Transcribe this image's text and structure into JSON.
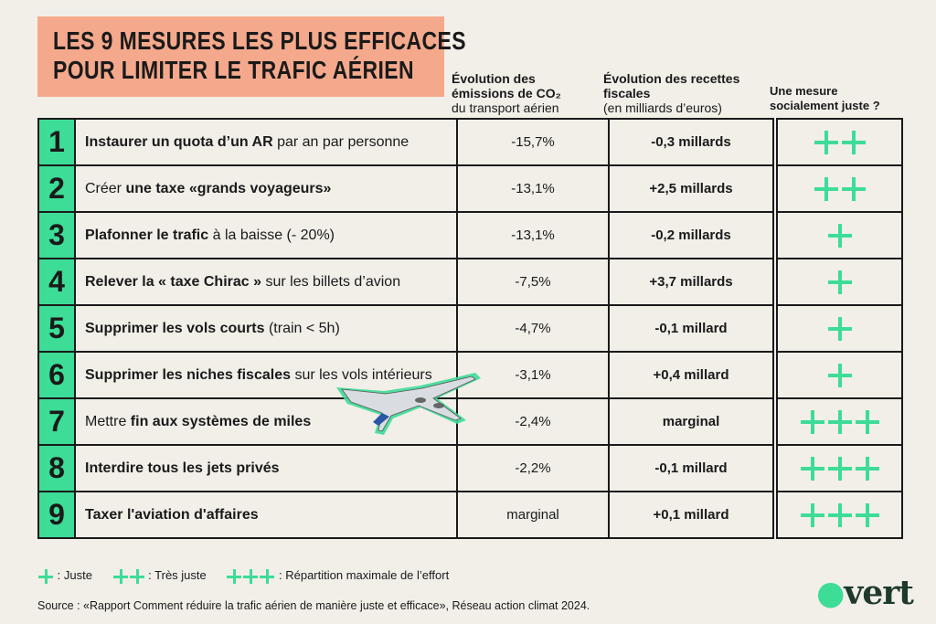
{
  "title": {
    "line1": "LES 9 MESURES LES PLUS EFFICACES",
    "line2": "POUR LIMITER LE TRAFIC AÉRIEN"
  },
  "headers": {
    "co2_bold": "Évolution des émissions de CO₂",
    "co2_sub": "du transport aérien",
    "rev_bold": "Évolution des recettes fiscales",
    "rev_sub": "(en milliards d’euros)",
    "fair": "Une mesure socialement juste ?"
  },
  "rows": [
    {
      "num": "1",
      "bold1": "Instaurer un quota d’un AR",
      "text": " par an par personne",
      "co2": "-15,7%",
      "rev": "-0,3 millards",
      "plus": 2
    },
    {
      "num": "2",
      "pre": "Créer ",
      "bold1": "une taxe «grands voyageurs»",
      "text": "",
      "co2": "-13,1%",
      "rev": "+2,5 millards",
      "plus": 2
    },
    {
      "num": "3",
      "bold1": "Plafonner le trafic",
      "text": " à la baisse (- 20%)",
      "co2": "-13,1%",
      "rev": "-0,2 millards",
      "plus": 1
    },
    {
      "num": "4",
      "bold1": "Relever la « taxe Chirac »",
      "text": " sur les billets d’avion",
      "co2": "-7,5%",
      "rev": "+3,7 millards",
      "plus": 1
    },
    {
      "num": "5",
      "bold1": "Supprimer les vols courts",
      "text": " (train < 5h)",
      "co2": "-4,7%",
      "rev": "-0,1 millard",
      "plus": 1
    },
    {
      "num": "6",
      "bold1": "Supprimer les niches fiscales",
      "text": " sur les vols intérieurs",
      "co2": "-3,1%",
      "rev": "+0,4 millard",
      "plus": 1
    },
    {
      "num": "7",
      "pre": "Mettre ",
      "bold1": "fin aux systèmes de miles",
      "text": "",
      "co2": "-2,4%",
      "rev": "marginal",
      "plus": 3
    },
    {
      "num": "8",
      "bold1": "Interdire tous les jets privés",
      "text": "",
      "co2": "-2,2%",
      "rev": "-0,1 millard",
      "plus": 3
    },
    {
      "num": "9",
      "bold1": "Taxer l'aviation d'affaires",
      "text": "",
      "co2": "marginal",
      "rev": "+0,1 millard",
      "plus": 3
    }
  ],
  "legend": {
    "one": ": Juste",
    "two": ": Très juste",
    "three": ": Répartition maximale de l’effort"
  },
  "source": "Source : «Rapport Comment réduire la trafic aérien de manière juste et efficace», Réseau action climat 2024.",
  "logo": "vert",
  "colors": {
    "accent": "#3ddc97",
    "title_bg": "#f4a98c",
    "bg": "#f1efe8"
  }
}
